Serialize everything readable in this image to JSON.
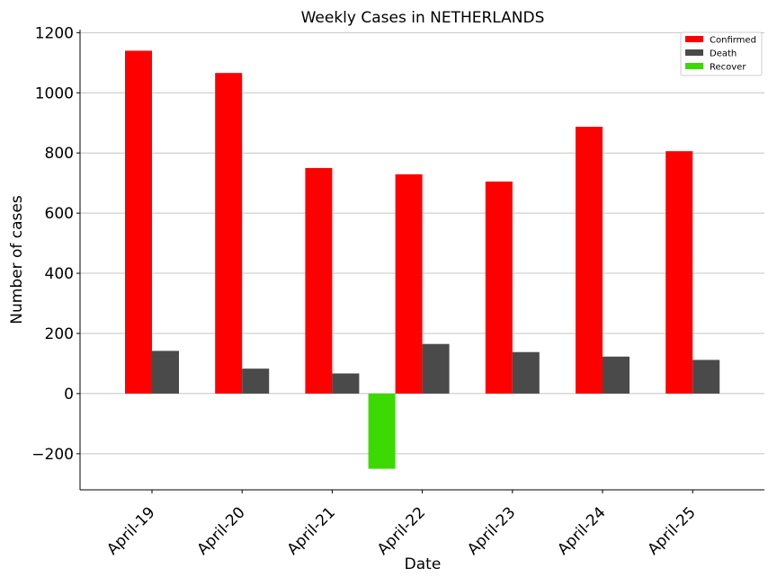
{
  "chart_data": {
    "type": "bar",
    "title": "Weekly Cases in NETHERLANDS",
    "xlabel": "Date",
    "ylabel": "Number of cases",
    "categories": [
      "April-19",
      "April-20",
      "April-21",
      "April-22",
      "April-23",
      "April-24",
      "April-25"
    ],
    "series": [
      {
        "name": "Confirmed",
        "color": "#ff0000",
        "values": [
          1140,
          1066,
          750,
          729,
          705,
          887,
          806
        ]
      },
      {
        "name": "Death",
        "color": "#4a4a4a",
        "values": [
          142,
          83,
          67,
          165,
          138,
          123,
          112
        ]
      },
      {
        "name": "Recover",
        "color": "#3cd902",
        "values": [
          null,
          null,
          null,
          -250,
          null,
          null,
          null
        ]
      }
    ],
    "ylim": [
      -320,
      1210
    ],
    "yticks": [
      1200,
      1000,
      800,
      600,
      400,
      200,
      0,
      -200
    ],
    "ytick_labels": [
      "1200",
      "1000",
      "800",
      "600",
      "400",
      "200",
      "0",
      "−200"
    ],
    "grid": "horizontal",
    "legend_position": "top-right"
  }
}
